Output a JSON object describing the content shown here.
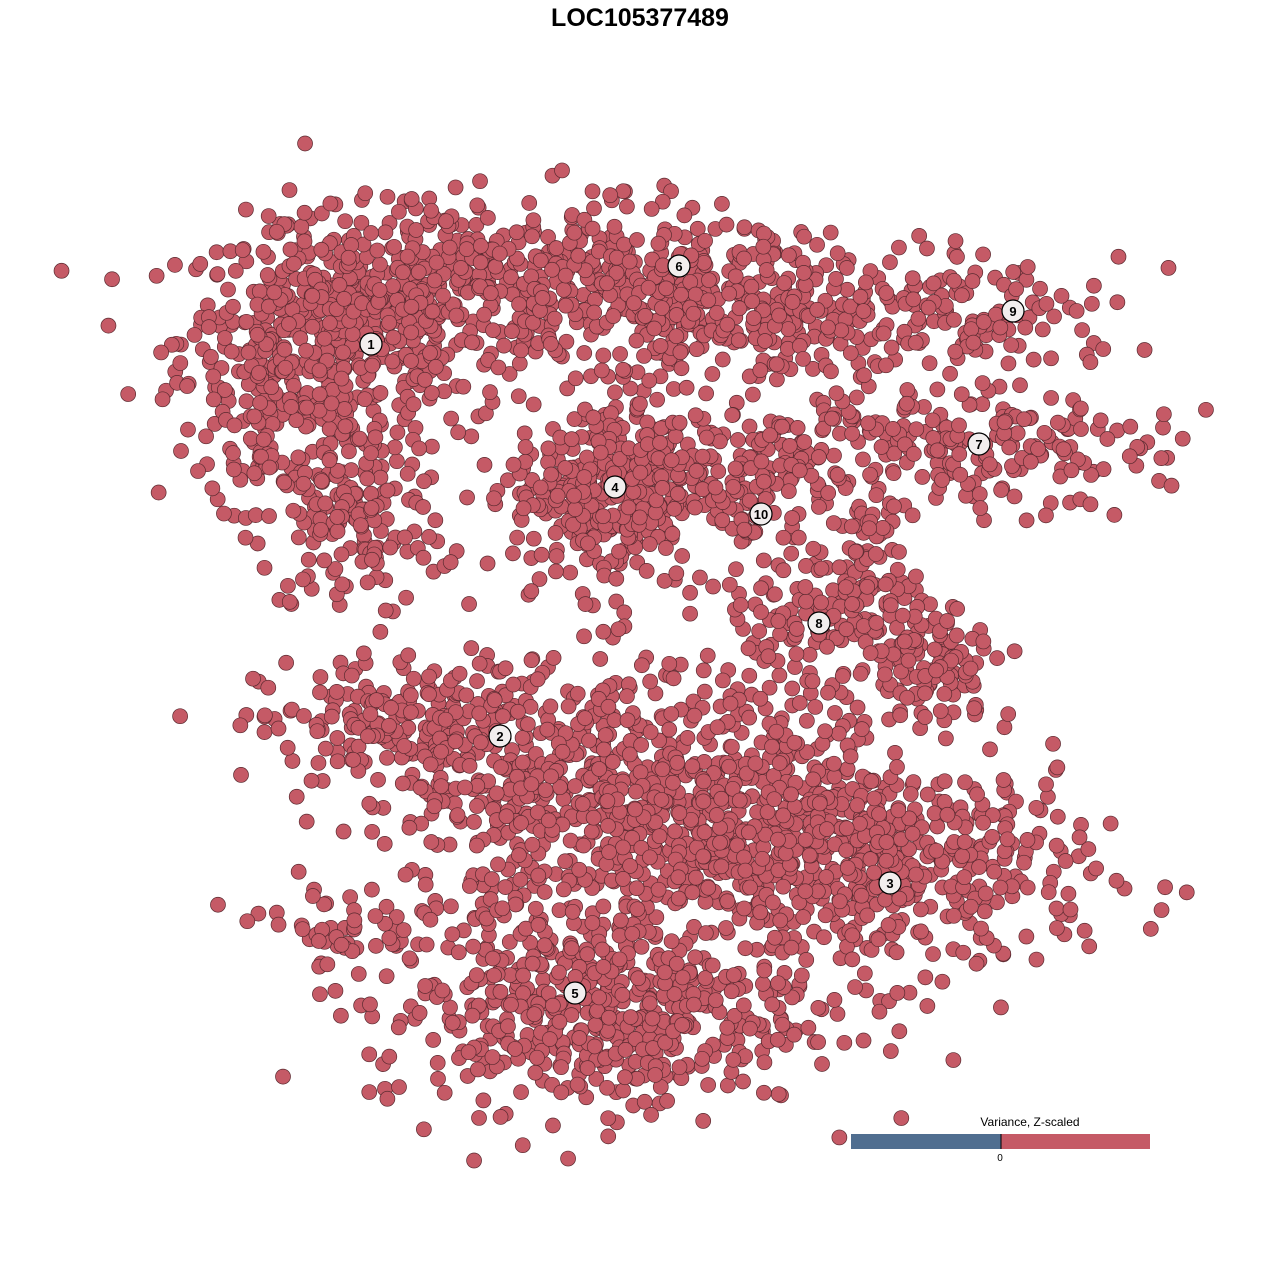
{
  "chart_data": {
    "type": "scatter",
    "title": "LOC105377489",
    "xlabel": "",
    "ylabel": "",
    "point_color": "#c55a66",
    "point_stroke": "#5a2a30",
    "label_fill": "#f2eeee",
    "note_distribution": "gaussian blobs per cluster: center [x,y], spread [sx,sy], count n",
    "clusters": [
      {
        "label": "1",
        "label_pos": [
          -26.9,
          29.6
        ],
        "blobs": [
          {
            "c": [
              -30,
              30
            ],
            "s": [
              8,
              6
            ],
            "n": 520
          },
          {
            "c": [
              -29,
              12
            ],
            "s": [
              5,
              5
            ],
            "n": 160
          },
          {
            "c": [
              -38,
              24
            ],
            "s": [
              2.5,
              6
            ],
            "n": 60
          }
        ]
      },
      {
        "label": "2",
        "label_pos": [
          -14,
          -9.6
        ],
        "blobs": [
          {
            "c": [
              -22,
              -9
            ],
            "s": [
              8,
              3.5
            ],
            "n": 260
          }
        ]
      },
      {
        "label": "3",
        "label_pos": [
          25,
          -24.3
        ],
        "blobs": [
          {
            "c": [
              25,
              -23
            ],
            "s": [
              10,
              5.5
            ],
            "n": 420
          }
        ]
      },
      {
        "label": "4",
        "label_pos": [
          -2.5,
          15.3
        ],
        "blobs": [
          {
            "c": [
              -3,
              15
            ],
            "s": [
              4.8,
              4.8
            ],
            "n": 360
          }
        ]
      },
      {
        "label": "5",
        "label_pos": [
          -6.5,
          -35.3
        ],
        "blobs": [
          {
            "c": [
              -5,
              -37
            ],
            "s": [
              11,
              5
            ],
            "n": 520
          },
          {
            "c": [
              3,
              -17
            ],
            "s": [
              13,
              7
            ],
            "n": 900
          },
          {
            "c": [
              -30,
              -29
            ],
            "s": [
              4,
              2
            ],
            "n": 45
          }
        ]
      },
      {
        "label": "6",
        "label_pos": [
          3.9,
          37.4
        ],
        "blobs": [
          {
            "c": [
              -10,
              36
            ],
            "s": [
              12,
              4
            ],
            "n": 460
          },
          {
            "c": [
              12,
              33
            ],
            "s": [
              9,
              4
            ],
            "n": 260
          }
        ]
      },
      {
        "label": "7",
        "label_pos": [
          33.9,
          19.6
        ],
        "blobs": [
          {
            "c": [
              30,
              19
            ],
            "s": [
              11,
              3
            ],
            "n": 220
          }
        ]
      },
      {
        "label": "8",
        "label_pos": [
          17.9,
          1.7
        ],
        "blobs": [
          {
            "c": [
              18,
              2
            ],
            "s": [
              6,
              2.5
            ],
            "n": 90
          },
          {
            "c": [
              29,
              -2
            ],
            "s": [
              4,
              3
            ],
            "n": 110
          },
          {
            "c": [
              22,
              8
            ],
            "s": [
              2.5,
              5
            ],
            "n": 90
          }
        ]
      },
      {
        "label": "9",
        "label_pos": [
          37.3,
          32.9
        ],
        "blobs": [
          {
            "c": [
              33,
              32
            ],
            "s": [
              8,
              3
            ],
            "n": 130
          }
        ]
      },
      {
        "label": "10",
        "label_pos": [
          12.1,
          12.6
        ],
        "blobs": [
          {
            "c": [
              12,
              15
            ],
            "s": [
              2.5,
              4
            ],
            "n": 80
          },
          {
            "c": [
              6,
              18
            ],
            "s": [
              6,
              1.8
            ],
            "n": 60
          }
        ]
      }
    ],
    "legend": {
      "title": "Variance, Z-scaled",
      "tick": "0",
      "low_color": "#506e90",
      "high_color": "#c55a66",
      "placement": "bottom-right"
    }
  }
}
